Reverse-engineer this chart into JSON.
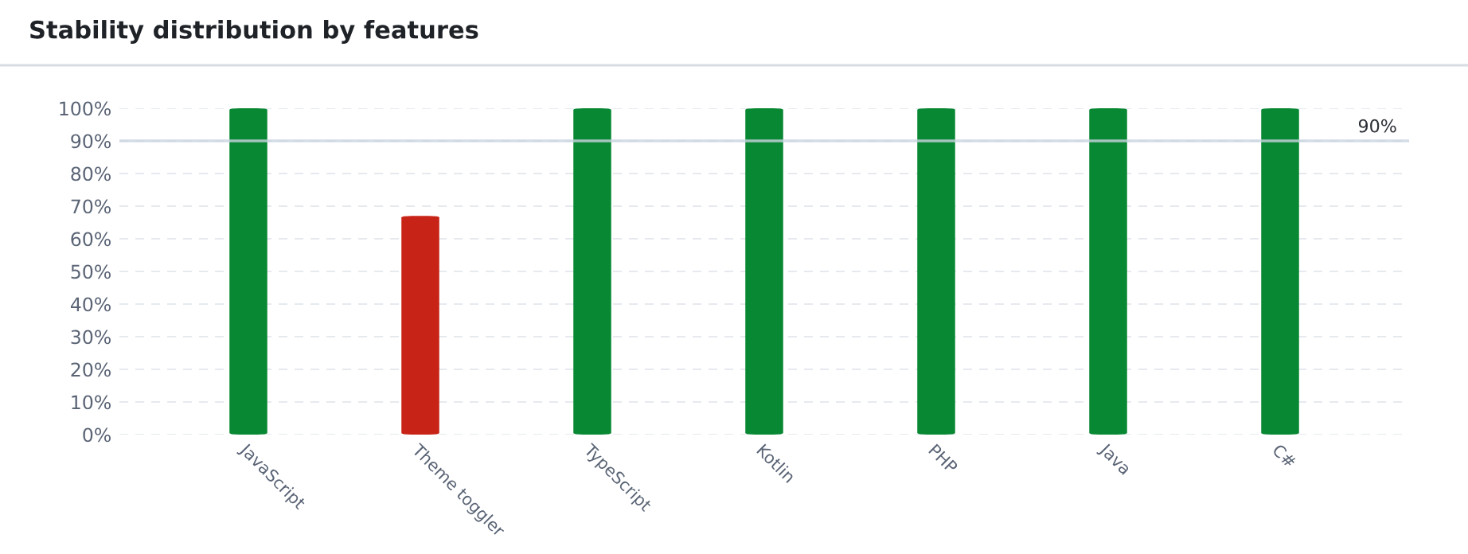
{
  "chart_data": {
    "type": "bar",
    "title": "Stability distribution by features",
    "categories": [
      "JavaScript",
      "Theme toggler",
      "TypeScript",
      "Kotlin",
      "PHP",
      "Java",
      "C#"
    ],
    "values": [
      100,
      67,
      100,
      100,
      100,
      100,
      100
    ],
    "colors": [
      "#098834",
      "#c72417",
      "#098834",
      "#098834",
      "#098834",
      "#098834",
      "#098834"
    ],
    "ylim": [
      0,
      100
    ],
    "yticks": [
      {
        "value": 0,
        "label": "0%"
      },
      {
        "value": 10,
        "label": "10%"
      },
      {
        "value": 20,
        "label": "20%"
      },
      {
        "value": 30,
        "label": "30%"
      },
      {
        "value": 40,
        "label": "40%"
      },
      {
        "value": 50,
        "label": "50%"
      },
      {
        "value": 60,
        "label": "60%"
      },
      {
        "value": 70,
        "label": "70%"
      },
      {
        "value": 80,
        "label": "80%"
      },
      {
        "value": 90,
        "label": "90%"
      },
      {
        "value": 100,
        "label": "100%"
      }
    ],
    "grid": "y",
    "ref_lines": [
      {
        "axis": "y",
        "value": 90,
        "label": "90%",
        "color": "#c9d5e0"
      }
    ]
  }
}
